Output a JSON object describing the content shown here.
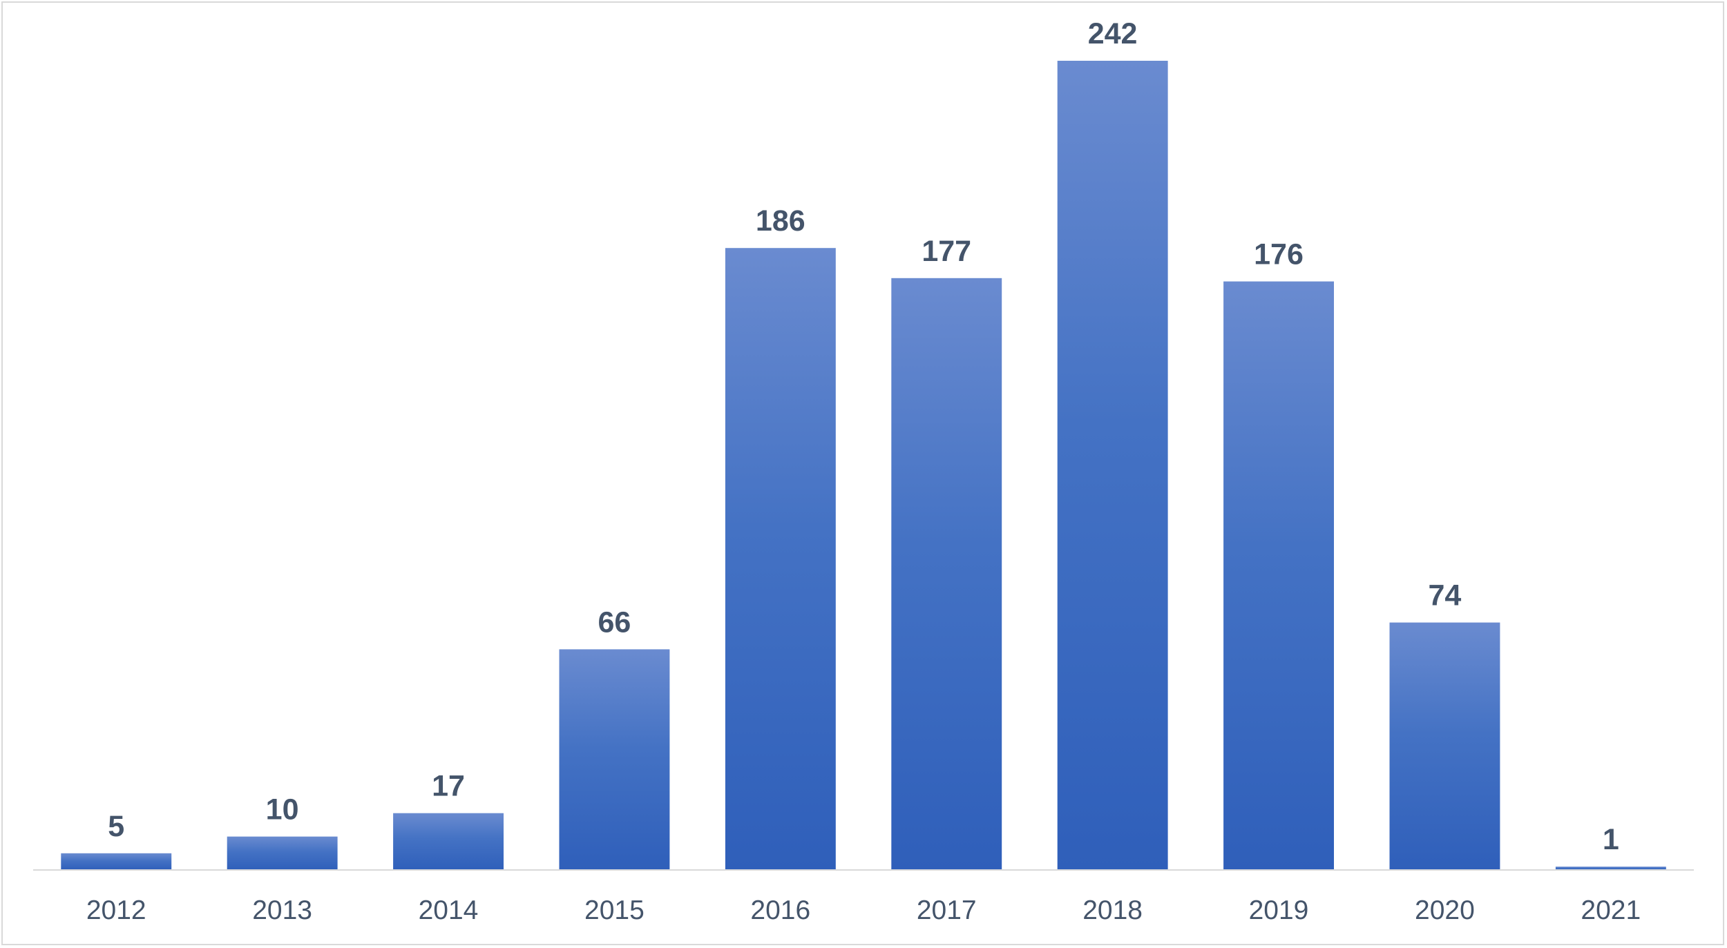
{
  "chart_data": {
    "type": "bar",
    "categories": [
      "2012",
      "2013",
      "2014",
      "2015",
      "2016",
      "2017",
      "2018",
      "2019",
      "2020",
      "2021"
    ],
    "values": [
      5,
      10,
      17,
      66,
      186,
      177,
      242,
      176,
      74,
      1
    ],
    "title": "",
    "xlabel": "",
    "ylabel": "",
    "ylim": [
      0,
      242
    ],
    "grid": false,
    "legend": "none",
    "data_labels": true,
    "colors": {
      "bar_top": "#6a8bd0",
      "bar_mid": "#4472c4",
      "bar_bottom": "#2f5fba",
      "label": "#44546a",
      "axis": "#d9d9d9"
    }
  }
}
